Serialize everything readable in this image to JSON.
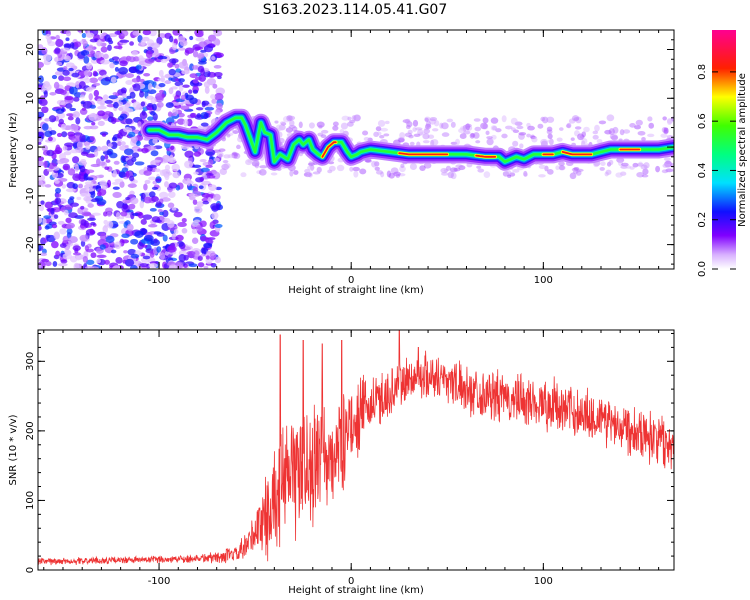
{
  "title": "S163.2023.114.05.41.G07",
  "colors": {
    "snr_line": "#ee3333",
    "frame": "#000000",
    "background": "#ffffff"
  },
  "chart_data": [
    {
      "type": "heatmap",
      "xlabel": "Height of straight line (km)",
      "ylabel": "Frequency (Hz)",
      "xlim": [
        -163,
        168
      ],
      "ylim": [
        -25,
        24
      ],
      "x_ticks": [
        {
          "v": -100,
          "label": "-100"
        },
        {
          "v": 0,
          "label": "0"
        },
        {
          "v": 100,
          "label": "100"
        }
      ],
      "y_ticks": [
        {
          "v": -20,
          "label": "-20"
        },
        {
          "v": -10,
          "label": "-10"
        },
        {
          "v": 0,
          "label": "0"
        },
        {
          "v": 10,
          "label": "10"
        },
        {
          "v": 20,
          "label": "20"
        }
      ],
      "colorbar": {
        "label": "Normalized spectral amplitude",
        "range": [
          0,
          0.97
        ],
        "ticks": [
          {
            "v": 0.0,
            "label": "0.0"
          },
          {
            "v": 0.2,
            "label": "0.2"
          },
          {
            "v": 0.4,
            "label": "0.4"
          },
          {
            "v": 0.6,
            "label": "0.6"
          },
          {
            "v": 0.8,
            "label": "0.8"
          }
        ],
        "colormap": "white-purple-blue-cyan-green-yellow-red-magenta"
      },
      "noise_region": {
        "x_start": -163,
        "x_end": -68,
        "amplitude_max": 0.25
      },
      "ridge": [
        [
          -105,
          3.5
        ],
        [
          -100,
          3.5
        ],
        [
          -95,
          2.5
        ],
        [
          -90,
          2.5
        ],
        [
          -85,
          2.0
        ],
        [
          -80,
          2.0
        ],
        [
          -75,
          1.5
        ],
        [
          -70,
          3.0
        ],
        [
          -65,
          5.0
        ],
        [
          -60,
          6.0
        ],
        [
          -57,
          6.0
        ],
        [
          -55,
          4.5
        ],
        [
          -50,
          -1.0
        ],
        [
          -47,
          5.0
        ],
        [
          -45,
          3.0
        ],
        [
          -42,
          2.5
        ],
        [
          -40,
          -3.0
        ],
        [
          -37,
          -1.5
        ],
        [
          -33,
          -2.5
        ],
        [
          -30,
          0.5
        ],
        [
          -27,
          1.5
        ],
        [
          -25,
          0.5
        ],
        [
          -22,
          1.5
        ],
        [
          -20,
          -0.5
        ],
        [
          -17,
          -1.5
        ],
        [
          -15,
          -2.0
        ],
        [
          -12,
          0.0
        ],
        [
          -9,
          1.0
        ],
        [
          -5,
          1.0
        ],
        [
          -2,
          -1.0
        ],
        [
          0,
          -2.0
        ],
        [
          3,
          -1.5
        ],
        [
          5,
          -1.0
        ],
        [
          10,
          -0.5
        ],
        [
          20,
          -1.0
        ],
        [
          30,
          -1.5
        ],
        [
          45,
          -1.5
        ],
        [
          60,
          -1.5
        ],
        [
          70,
          -2.0
        ],
        [
          77,
          -2.0
        ],
        [
          80,
          -3.0
        ],
        [
          83,
          -2.5
        ],
        [
          86,
          -2.0
        ],
        [
          90,
          -2.5
        ],
        [
          95,
          -1.5
        ],
        [
          100,
          -1.5
        ],
        [
          105,
          -1.5
        ],
        [
          110,
          -1.0
        ],
        [
          115,
          -1.5
        ],
        [
          125,
          -1.5
        ],
        [
          130,
          -1.0
        ],
        [
          135,
          -0.5
        ],
        [
          140,
          -0.5
        ],
        [
          150,
          -0.5
        ],
        [
          160,
          -0.5
        ],
        [
          168,
          0.0
        ]
      ]
    },
    {
      "type": "line",
      "xlabel": "Height of straight line (km)",
      "ylabel": "SNR (10 * v/v)",
      "xlim": [
        -163,
        168
      ],
      "ylim": [
        0,
        345
      ],
      "x_ticks": [
        {
          "v": -100,
          "label": "-100"
        },
        {
          "v": 0,
          "label": "0"
        },
        {
          "v": 100,
          "label": "100"
        }
      ],
      "y_ticks": [
        {
          "v": 0,
          "label": "0"
        },
        {
          "v": 100,
          "label": "100"
        },
        {
          "v": 200,
          "label": "200"
        },
        {
          "v": 300,
          "label": "300"
        }
      ],
      "series": [
        {
          "name": "",
          "x": [
            -163,
            -140,
            -120,
            -100,
            -90,
            -80,
            -70,
            -60,
            -55,
            -50,
            -45,
            -40,
            -35,
            -30,
            -25,
            -20,
            -15,
            -10,
            -5,
            0,
            5,
            10,
            20,
            30,
            40,
            50,
            60,
            80,
            100,
            120,
            140,
            160,
            168
          ],
          "mean": [
            12,
            13,
            14,
            15,
            16,
            17,
            18,
            22,
            30,
            55,
            75,
            100,
            120,
            140,
            150,
            150,
            150,
            160,
            180,
            210,
            225,
            235,
            255,
            275,
            280,
            275,
            260,
            245,
            240,
            225,
            210,
            190,
            175
          ],
          "amplitude": [
            6,
            6,
            6,
            6,
            7,
            8,
            10,
            15,
            25,
            45,
            70,
            90,
            100,
            110,
            110,
            110,
            100,
            90,
            80,
            70,
            60,
            50,
            45,
            40,
            40,
            40,
            40,
            45,
            45,
            45,
            45,
            45,
            40
          ],
          "peaks": [
            [
              -37,
              338
            ],
            [
              -25,
              330
            ],
            [
              -15,
              325
            ],
            [
              -5,
              330
            ],
            [
              25,
              345
            ],
            [
              35,
              320
            ]
          ]
        }
      ]
    }
  ]
}
